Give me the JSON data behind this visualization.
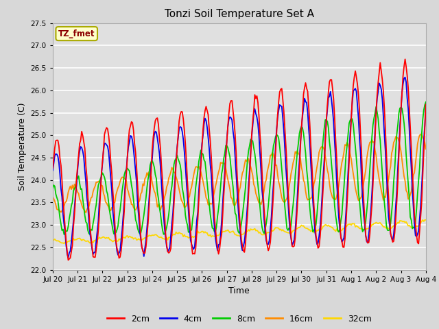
{
  "title": "Tonzi Soil Temperature Set A",
  "xlabel": "Time",
  "ylabel": "Soil Temperature (C)",
  "ylim": [
    22.0,
    27.5
  ],
  "yticks": [
    22.0,
    22.5,
    23.0,
    23.5,
    24.0,
    24.5,
    25.0,
    25.5,
    26.0,
    26.5,
    27.0,
    27.5
  ],
  "annotation_text": "TZ_fmet",
  "annotation_color": "#8B0000",
  "annotation_bg": "#FFFFCC",
  "annotation_border": "#AAAA00",
  "series_colors": [
    "#FF0000",
    "#0000EE",
    "#00CC00",
    "#FF8C00",
    "#FFD700"
  ],
  "series_labels": [
    "2cm",
    "4cm",
    "8cm",
    "16cm",
    "32cm"
  ],
  "series_linewidths": [
    1.3,
    1.3,
    1.3,
    1.3,
    1.3
  ],
  "bg_color": "#D8D8D8",
  "plot_bg_color": "#E0E0E0",
  "grid_color": "#FFFFFF",
  "xtick_labels": [
    "Jul 20",
    "Jul 21",
    "Jul 22",
    "Jul 23",
    "Jul 24",
    "Jul 25",
    "Jul 26",
    "Jul 27",
    "Jul 28",
    "Jul 29",
    "Jul 30",
    "Jul 31",
    "Aug 1",
    "Aug 2",
    "Aug 3",
    "Aug 4"
  ],
  "xtick_positions": [
    0,
    24,
    48,
    72,
    96,
    120,
    144,
    168,
    192,
    216,
    240,
    264,
    288,
    312,
    336,
    360
  ]
}
